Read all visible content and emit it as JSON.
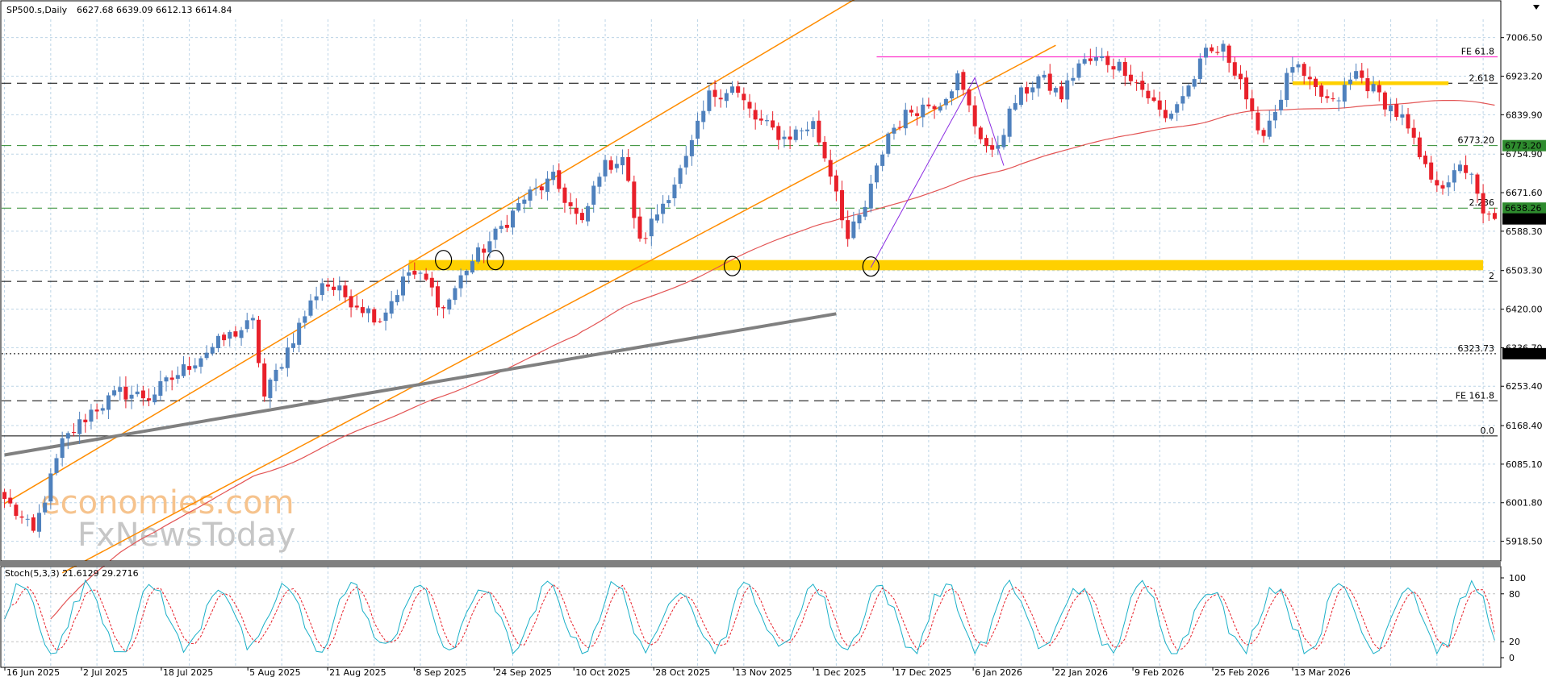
{
  "header": {
    "symbol_label": "SP500.s,Daily",
    "ohlc": "6627.68 6639.09 6612.13 6614.84",
    "stoch_label": "Stoch(5,3,3) 21.6129 29.2716"
  },
  "watermark": {
    "line1": "economies.com",
    "line2": "FxNewsToday"
  },
  "colors": {
    "bull": "#4f81bd",
    "bear": "#e8202a",
    "ma": "#e35555",
    "channel": "#ff8c00",
    "trend": "#808080",
    "zone": "#ffd000",
    "fe_line": "#ff33cc",
    "green_level": "#2e8b2e",
    "stoch_main": "#1ab0c8",
    "stoch_signal": "#e8202a",
    "grid": "#bcd4e6"
  },
  "chart_data": {
    "type": "candlestick",
    "title": "SP500.s,Daily",
    "ylim": [
      5876,
      7046
    ],
    "y_ticks": [
      "7006.50",
      "6923.20",
      "6839.90",
      "6754.90",
      "6671.60",
      "6588.30",
      "6503.30",
      "6420.00",
      "6336.70",
      "6253.40",
      "6168.40",
      "6085.10",
      "6001.80",
      "5918.50"
    ],
    "x_ticks": [
      "16 Jun 2025",
      "2 Jul 2025",
      "18 Jul 2025",
      "5 Aug 2025",
      "21 Aug 2025",
      "8 Sep 2025",
      "24 Sep 2025",
      "10 Oct 2025",
      "28 Oct 2025",
      "13 Nov 2025",
      "1 Dec 2025",
      "17 Dec 2025",
      "6 Jan 2026",
      "22 Jan 2026",
      "9 Feb 2026",
      "25 Feb 2026",
      "13 Mar 2026"
    ],
    "anchors": [
      [
        0,
        6010
      ],
      [
        5,
        5935
      ],
      [
        10,
        6130
      ],
      [
        15,
        6200
      ],
      [
        20,
        6240
      ],
      [
        25,
        6230
      ],
      [
        30,
        6280
      ],
      [
        35,
        6330
      ],
      [
        40,
        6370
      ],
      [
        43,
        6390
      ],
      [
        45,
        6230
      ],
      [
        50,
        6360
      ],
      [
        55,
        6480
      ],
      [
        60,
        6440
      ],
      [
        65,
        6400
      ],
      [
        70,
        6500
      ],
      [
        73,
        6480
      ],
      [
        76,
        6420
      ],
      [
        80,
        6510
      ],
      [
        85,
        6580
      ],
      [
        90,
        6660
      ],
      [
        95,
        6700
      ],
      [
        100,
        6600
      ],
      [
        103,
        6720
      ],
      [
        107,
        6750
      ],
      [
        110,
        6560
      ],
      [
        114,
        6650
      ],
      [
        118,
        6740
      ],
      [
        122,
        6880
      ],
      [
        126,
        6900
      ],
      [
        130,
        6830
      ],
      [
        135,
        6790
      ],
      [
        140,
        6820
      ],
      [
        144,
        6680
      ],
      [
        146,
        6570
      ],
      [
        149,
        6640
      ],
      [
        153,
        6800
      ],
      [
        157,
        6850
      ],
      [
        162,
        6870
      ],
      [
        165,
        6920
      ],
      [
        168,
        6820
      ],
      [
        171,
        6750
      ],
      [
        175,
        6870
      ],
      [
        179,
        6920
      ],
      [
        183,
        6880
      ],
      [
        186,
        6950
      ],
      [
        190,
        6960
      ],
      [
        194,
        6940
      ],
      [
        198,
        6880
      ],
      [
        201,
        6830
      ],
      [
        205,
        6900
      ],
      [
        208,
        6970
      ],
      [
        211,
        6980
      ],
      [
        214,
        6920
      ],
      [
        217,
        6790
      ],
      [
        220,
        6850
      ],
      [
        223,
        6950
      ],
      [
        226,
        6900
      ],
      [
        230,
        6860
      ],
      [
        234,
        6930
      ],
      [
        238,
        6880
      ],
      [
        242,
        6830
      ],
      [
        246,
        6720
      ],
      [
        250,
        6680
      ],
      [
        252,
        6740
      ],
      [
        254,
        6700
      ],
      [
        256,
        6620
      ],
      [
        258,
        6615
      ]
    ],
    "n_bars": 259,
    "series": [
      {
        "name": "Channel upper",
        "type": "line",
        "x": [
          0,
          150
        ],
        "y": [
          6000,
          7110
        ]
      },
      {
        "name": "Channel lower",
        "type": "line",
        "x": [
          10,
          182
        ],
        "y": [
          5850,
          6990
        ]
      },
      {
        "name": "Trendline",
        "type": "line",
        "x": [
          0,
          144
        ],
        "y": [
          6105,
          6410
        ]
      },
      {
        "name": "Wave line",
        "type": "line",
        "x": [
          150,
          168,
          173
        ],
        "y": [
          6510,
          6920,
          6730
        ]
      }
    ],
    "levels": [
      {
        "label": "FE 61.8",
        "value": 6965
      },
      {
        "label": "2.618",
        "value": 6908
      },
      {
        "label": "6773.20",
        "value": 6773.2
      },
      {
        "label": "2.236",
        "value": 6638.26
      },
      {
        "label": "2",
        "value": 6480
      },
      {
        "label": "6323.73",
        "value": 6323.73
      },
      {
        "label": "FE 161.8",
        "value": 6222
      },
      {
        "label": "0.0",
        "value": 6146
      }
    ],
    "price_tags": [
      {
        "label": "6773.20",
        "value": 6773.2,
        "color": "#2e8b2e"
      },
      {
        "label": "6638.26",
        "value": 6638.26,
        "color": "#2e8b2e"
      },
      {
        "label": "6614.84",
        "value": 6614.84,
        "color": "#000000"
      },
      {
        "label": "6323.73",
        "value": 6323.73,
        "color": "#000000"
      }
    ],
    "zone": {
      "from": 6504,
      "to": 6526
    },
    "stoch": {
      "ylim": [
        0,
        100
      ],
      "ticks": [
        "100",
        "80",
        "20",
        "0"
      ],
      "main_last": 21.6129,
      "signal_last": 29.2716
    }
  }
}
